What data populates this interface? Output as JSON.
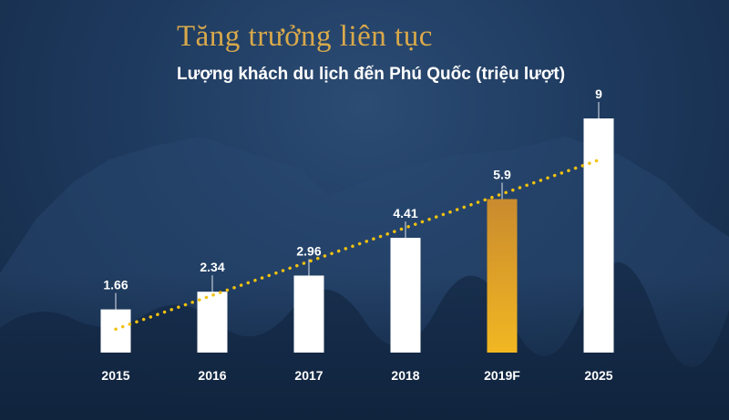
{
  "header": {
    "title": "Tăng trưởng liên tục",
    "subtitle": "Lượng khách du lịch đến Phú Quốc (triệu lượt)"
  },
  "chart_data": {
    "type": "bar",
    "title": "Tăng trưởng liên tục",
    "subtitle": "Lượng khách du lịch đến Phú Quốc (triệu lượt)",
    "categories": [
      "2015",
      "2016",
      "2017",
      "2018",
      "2019F",
      "2025"
    ],
    "values": [
      1.66,
      2.34,
      2.96,
      4.41,
      5.9,
      9
    ],
    "data_labels": [
      "1.66",
      "2.34",
      "2.96",
      "4.41",
      "5.9",
      "9"
    ],
    "highlight_index": 4,
    "ylim": [
      0,
      9
    ],
    "grid": false,
    "legend": "none",
    "trendline": {
      "style": "dotted",
      "from_value": 0.9,
      "to_value": 7.4
    },
    "colors": {
      "bar": "#ffffff",
      "highlight_top": "#c98b2e",
      "highlight_bottom": "#f2b722",
      "trendline": "#f2c20e",
      "title": "#d9a94a",
      "background": "#1e3a5f"
    }
  }
}
